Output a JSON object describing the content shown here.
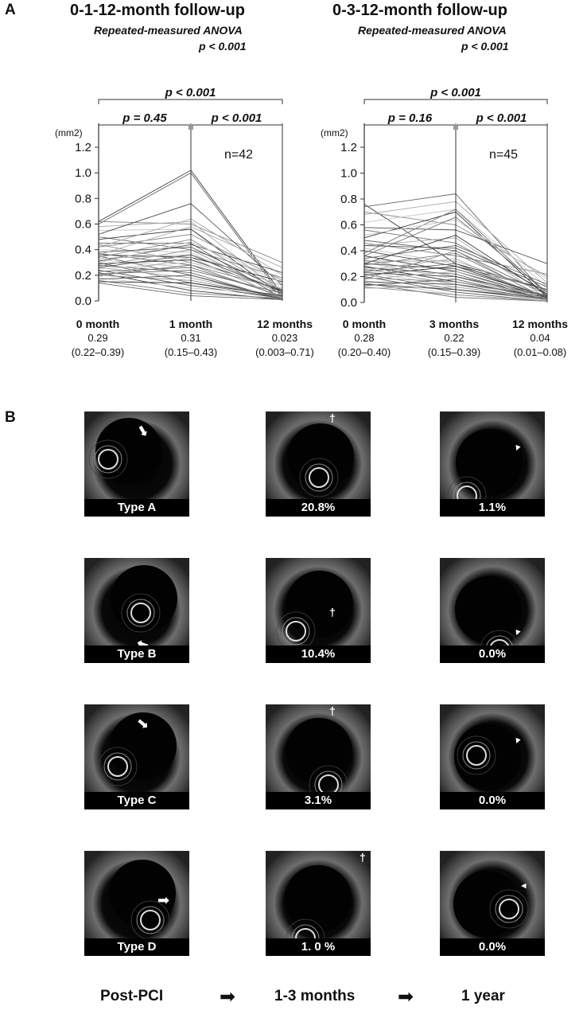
{
  "panels": {
    "a": "A",
    "b": "B"
  },
  "chart_data": [
    {
      "type": "line",
      "title": "0-1-12-month follow-up",
      "subtitle": "Repeated-measured ANOVA",
      "anova_p": "p < 0.001",
      "y_unit": "(mm2)",
      "ylim": [
        0,
        1.2
      ],
      "yticks": [
        "0.0",
        "0.2",
        "0.4",
        "0.6",
        "0.8",
        "1.0",
        "1.2"
      ],
      "n_label": "n=42",
      "comparisons": {
        "overall": "p < 0.001",
        "first": "p = 0.45",
        "second": "p < 0.001"
      },
      "timepoints": [
        {
          "name": "0 month",
          "median": "0.29",
          "iqr": "(0.22–0.39)"
        },
        {
          "name": "1 month",
          "median": "0.31",
          "iqr": "(0.15–0.43)"
        },
        {
          "name": "12 months",
          "median": "0.023",
          "iqr": "(0.003–0.71)"
        }
      ],
      "series": [
        [
          0.62,
          1.02,
          0.05
        ],
        [
          0.6,
          1.0,
          0.03
        ],
        [
          0.62,
          0.6,
          0.3
        ],
        [
          0.58,
          0.62,
          0.06
        ],
        [
          0.55,
          0.56,
          0.08
        ],
        [
          0.52,
          0.76,
          0.12
        ],
        [
          0.5,
          0.4,
          0.18
        ],
        [
          0.48,
          0.56,
          0.04
        ],
        [
          0.45,
          0.45,
          0.02
        ],
        [
          0.44,
          0.3,
          0.1
        ],
        [
          0.42,
          0.64,
          0.2
        ],
        [
          0.4,
          0.38,
          0.01
        ],
        [
          0.38,
          0.42,
          0.08
        ],
        [
          0.37,
          0.28,
          0.03
        ],
        [
          0.36,
          0.34,
          0.15
        ],
        [
          0.35,
          0.2,
          0.02
        ],
        [
          0.34,
          0.48,
          0.06
        ],
        [
          0.33,
          0.36,
          0.12
        ],
        [
          0.32,
          0.26,
          0.04
        ],
        [
          0.31,
          0.44,
          0.22
        ],
        [
          0.3,
          0.14,
          0.02
        ],
        [
          0.29,
          0.32,
          0.08
        ],
        [
          0.28,
          0.22,
          0.01
        ],
        [
          0.27,
          0.4,
          0.05
        ],
        [
          0.26,
          0.18,
          0.03
        ],
        [
          0.25,
          0.3,
          0.1
        ],
        [
          0.24,
          0.12,
          0.02
        ],
        [
          0.23,
          0.26,
          0.04
        ],
        [
          0.22,
          0.08,
          0.01
        ],
        [
          0.21,
          0.24,
          0.06
        ],
        [
          0.2,
          0.16,
          0.03
        ],
        [
          0.19,
          0.34,
          0.02
        ],
        [
          0.18,
          0.1,
          0.05
        ],
        [
          0.17,
          0.2,
          0.01
        ],
        [
          0.16,
          0.06,
          0.02
        ],
        [
          0.15,
          0.14,
          0.04
        ],
        [
          0.14,
          0.04,
          0.01
        ],
        [
          0.42,
          0.52,
          0.16
        ],
        [
          0.36,
          0.58,
          0.26
        ],
        [
          0.3,
          0.46,
          0.14
        ],
        [
          0.26,
          0.36,
          0.07
        ],
        [
          0.2,
          0.28,
          0.09
        ]
      ]
    },
    {
      "type": "line",
      "title": "0-3-12-month follow-up",
      "subtitle": "Repeated-measured ANOVA",
      "anova_p": "p < 0.001",
      "y_unit": "(mm2)",
      "ylim": [
        0,
        1.2
      ],
      "yticks": [
        "0.0",
        "0.2",
        "0.4",
        "0.6",
        "0.8",
        "1.0",
        "1.2"
      ],
      "n_label": "n=45",
      "comparisons": {
        "overall": "p < 0.001",
        "first": "p = 0.16",
        "second": "p < 0.001"
      },
      "timepoints": [
        {
          "name": "0 month",
          "median": "0.28",
          "iqr": "(0.20–0.40)"
        },
        {
          "name": "3 months",
          "median": "0.22",
          "iqr": "(0.15–0.39)"
        },
        {
          "name": "12 months",
          "median": "0.04",
          "iqr": "(0.01–0.08)"
        }
      ],
      "series": [
        [
          0.76,
          0.3,
          0.1
        ],
        [
          0.74,
          0.84,
          0.05
        ],
        [
          0.7,
          0.6,
          0.2
        ],
        [
          0.68,
          0.78,
          0.15
        ],
        [
          0.62,
          0.72,
          0.12
        ],
        [
          0.58,
          0.56,
          0.3
        ],
        [
          0.56,
          0.46,
          0.08
        ],
        [
          0.5,
          0.7,
          0.04
        ],
        [
          0.48,
          0.4,
          0.06
        ],
        [
          0.46,
          0.36,
          0.22
        ],
        [
          0.44,
          0.5,
          0.03
        ],
        [
          0.42,
          0.3,
          0.02
        ],
        [
          0.4,
          0.28,
          0.1
        ],
        [
          0.38,
          0.72,
          0.06
        ],
        [
          0.36,
          0.24,
          0.04
        ],
        [
          0.34,
          0.44,
          0.14
        ],
        [
          0.33,
          0.2,
          0.02
        ],
        [
          0.32,
          0.32,
          0.08
        ],
        [
          0.31,
          0.18,
          0.01
        ],
        [
          0.3,
          0.26,
          0.05
        ],
        [
          0.29,
          0.38,
          0.03
        ],
        [
          0.28,
          0.16,
          0.04
        ],
        [
          0.27,
          0.22,
          0.02
        ],
        [
          0.26,
          0.14,
          0.06
        ],
        [
          0.25,
          0.34,
          0.01
        ],
        [
          0.24,
          0.12,
          0.03
        ],
        [
          0.23,
          0.2,
          0.05
        ],
        [
          0.22,
          0.1,
          0.02
        ],
        [
          0.21,
          0.28,
          0.04
        ],
        [
          0.2,
          0.08,
          0.01
        ],
        [
          0.19,
          0.16,
          0.03
        ],
        [
          0.18,
          0.24,
          0.02
        ],
        [
          0.17,
          0.06,
          0.01
        ],
        [
          0.16,
          0.14,
          0.02
        ],
        [
          0.15,
          0.04,
          0.01
        ],
        [
          0.14,
          0.1,
          0.03
        ],
        [
          0.13,
          0.18,
          0.02
        ],
        [
          0.12,
          0.06,
          0.01
        ],
        [
          0.11,
          0.12,
          0.02
        ],
        [
          0.52,
          0.64,
          0.18
        ],
        [
          0.44,
          0.42,
          0.12
        ],
        [
          0.36,
          0.66,
          0.08
        ],
        [
          0.3,
          0.52,
          0.06
        ],
        [
          0.24,
          0.3,
          0.04
        ],
        [
          0.18,
          0.4,
          0.02
        ]
      ]
    }
  ],
  "oct_grid": {
    "rows": [
      {
        "type": "Type A",
        "pcts": [
          "20.8%",
          "1.1%"
        ]
      },
      {
        "type": "Type B",
        "pcts": [
          "10.4%",
          "0.0%"
        ]
      },
      {
        "type": "Type C",
        "pcts": [
          "3.1%",
          "0.0%"
        ]
      },
      {
        "type": "Type D",
        "pcts": [
          "1. 0 %",
          "0.0%"
        ]
      }
    ],
    "columns": [
      "Post-PCI",
      "1-3 months",
      "1 year"
    ]
  }
}
